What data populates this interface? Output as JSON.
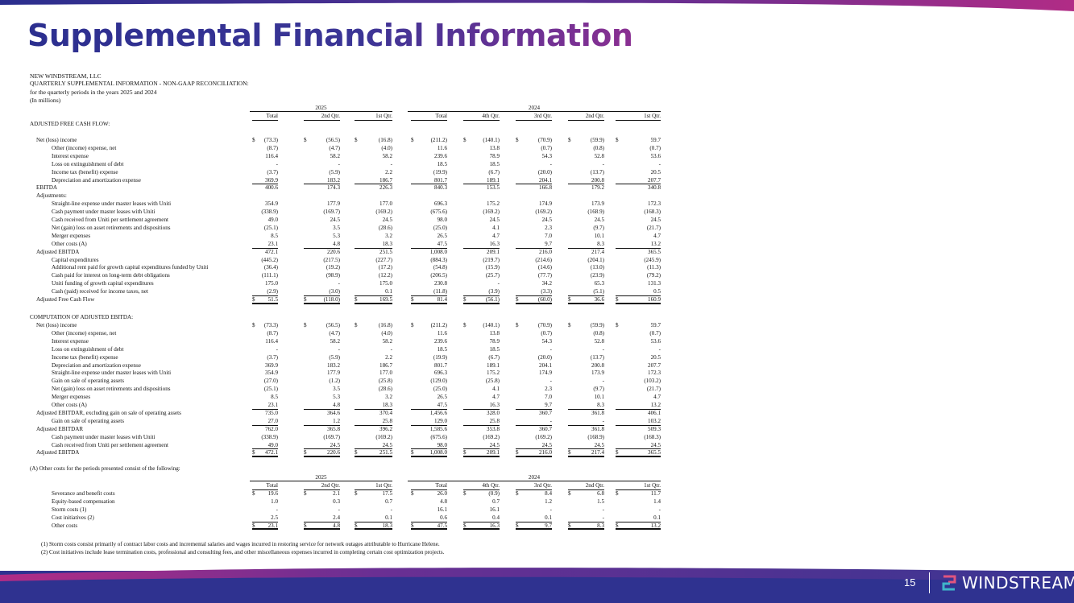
{
  "slide": {
    "title": "Supplemental Financial Information",
    "page_number": "15",
    "brand": "WINDSTREAM"
  },
  "doc": {
    "company": "NEW WINDSTREAM, LLC",
    "subtitle": "QUARTERLY SUPPLEMENTAL INFORMATION - NON-GAAP RECONCILIATION:",
    "periods": "for the quarterly periods in the years 2025 and 2024",
    "units": "(In millions)"
  },
  "columns": {
    "year_2025": "2025",
    "year_2024": "2024",
    "headers": [
      "Total",
      "2nd Qtr.",
      "1st Qtr.",
      "Total",
      "4th Qtr.",
      "3rd Qtr.",
      "2nd Qtr.",
      "1st Qtr."
    ]
  },
  "section1": {
    "title": "ADJUSTED FREE CASH FLOW:",
    "rows": [
      {
        "label": "Net (loss) income",
        "indent": 1,
        "dollar": true,
        "values": [
          "(73.3)",
          "(56.5)",
          "(16.8)",
          "(211.2)",
          "(140.1)",
          "(70.9)",
          "(59.9)",
          "59.7"
        ]
      },
      {
        "label": "Other (income) expense, net",
        "indent": 2,
        "values": [
          "(8.7)",
          "(4.7)",
          "(4.0)",
          "11.6",
          "13.8",
          "(0.7)",
          "(0.8)",
          "(0.7)"
        ]
      },
      {
        "label": "Interest expense",
        "indent": 2,
        "values": [
          "116.4",
          "58.2",
          "58.2",
          "239.6",
          "78.9",
          "54.3",
          "52.8",
          "53.6"
        ]
      },
      {
        "label": "Loss on extinguishment of debt",
        "indent": 2,
        "values": [
          "-",
          "-",
          "-",
          "18.5",
          "18.5",
          "-",
          "-",
          "-"
        ]
      },
      {
        "label": "Income tax (benefit) expense",
        "indent": 2,
        "values": [
          "(3.7)",
          "(5.9)",
          "2.2",
          "(19.9)",
          "(6.7)",
          "(20.0)",
          "(13.7)",
          "20.5"
        ]
      },
      {
        "label": "Depreciation and amortization expense",
        "indent": 2,
        "underline": true,
        "values": [
          "369.9",
          "183.2",
          "186.7",
          "801.7",
          "189.1",
          "204.1",
          "200.8",
          "207.7"
        ]
      },
      {
        "label": "EBITDA",
        "indent": 1,
        "values": [
          "400.6",
          "174.3",
          "226.3",
          "840.3",
          "153.5",
          "166.8",
          "179.2",
          "340.8"
        ]
      },
      {
        "label": "Adjustments:",
        "indent": 1,
        "values": []
      },
      {
        "label": "Straight-line expense under master leases with Uniti",
        "indent": 2,
        "values": [
          "354.9",
          "177.9",
          "177.0",
          "696.3",
          "175.2",
          "174.9",
          "173.9",
          "172.3"
        ]
      },
      {
        "label": "Cash payment under master leases with Uniti",
        "indent": 2,
        "values": [
          "(338.9)",
          "(169.7)",
          "(169.2)",
          "(675.6)",
          "(169.2)",
          "(169.2)",
          "(168.9)",
          "(168.3)"
        ]
      },
      {
        "label": "Cash received from Uniti per settlement agreement",
        "indent": 2,
        "values": [
          "49.0",
          "24.5",
          "24.5",
          "98.0",
          "24.5",
          "24.5",
          "24.5",
          "24.5"
        ]
      },
      {
        "label": "Net (gain) loss on asset retirements and dispositions",
        "indent": 2,
        "values": [
          "(25.1)",
          "3.5",
          "(28.6)",
          "(25.0)",
          "4.1",
          "2.3",
          "(9.7)",
          "(21.7)"
        ]
      },
      {
        "label": "Merger expenses",
        "indent": 2,
        "values": [
          "8.5",
          "5.3",
          "3.2",
          "26.5",
          "4.7",
          "7.0",
          "10.1",
          "4.7"
        ]
      },
      {
        "label": "Other costs (A)",
        "indent": 2,
        "underline": true,
        "values": [
          "23.1",
          "4.8",
          "18.3",
          "47.5",
          "16.3",
          "9.7",
          "8.3",
          "13.2"
        ]
      },
      {
        "label": "Adjusted EBITDA",
        "indent": 1,
        "values": [
          "472.1",
          "220.6",
          "251.5",
          "1,008.0",
          "209.1",
          "216.0",
          "217.4",
          "365.5"
        ]
      },
      {
        "label": "Capital expenditures",
        "indent": 2,
        "values": [
          "(445.2)",
          "(217.5)",
          "(227.7)",
          "(884.3)",
          "(219.7)",
          "(214.6)",
          "(204.1)",
          "(245.9)"
        ]
      },
      {
        "label": "Additional rent paid for growth capital expenditures funded by Uniti",
        "indent": 2,
        "values": [
          "(36.4)",
          "(19.2)",
          "(17.2)",
          "(54.8)",
          "(15.9)",
          "(14.6)",
          "(13.0)",
          "(11.3)"
        ]
      },
      {
        "label": "Cash paid for interest on long-term debt obligations",
        "indent": 2,
        "values": [
          "(111.1)",
          "(98.9)",
          "(12.2)",
          "(206.5)",
          "(25.7)",
          "(77.7)",
          "(23.9)",
          "(79.2)"
        ]
      },
      {
        "label": "Uniti funding of growth capital expenditures",
        "indent": 2,
        "values": [
          "175.0",
          "-",
          "175.0",
          "230.8",
          "-",
          "34.2",
          "65.3",
          "131.3"
        ]
      },
      {
        "label": "Cash (paid) received for income taxes, net",
        "indent": 2,
        "underline": true,
        "values": [
          "(2.9)",
          "(3.0)",
          "0.1",
          "(11.8)",
          "(3.9)",
          "(3.3)",
          "(5.1)",
          "0.5"
        ]
      },
      {
        "label": "Adjusted Free Cash Flow",
        "indent": 1,
        "dollar": true,
        "double": true,
        "values": [
          "51.5",
          "(118.0)",
          "169.5",
          "81.4",
          "(56.1)",
          "(60.0)",
          "36.6",
          "160.9"
        ]
      }
    ]
  },
  "section2": {
    "title": "COMPUTATION OF ADJUSTED EBITDA:",
    "rows": [
      {
        "label": "Net (loss) income",
        "indent": 1,
        "dollar": true,
        "values": [
          "(73.3)",
          "(56.5)",
          "(16.8)",
          "(211.2)",
          "(140.1)",
          "(70.9)",
          "(59.9)",
          "59.7"
        ]
      },
      {
        "label": "Other (income) expense, net",
        "indent": 2,
        "values": [
          "(8.7)",
          "(4.7)",
          "(4.0)",
          "11.6",
          "13.8",
          "(0.7)",
          "(0.8)",
          "(0.7)"
        ]
      },
      {
        "label": "Interest expense",
        "indent": 2,
        "values": [
          "116.4",
          "58.2",
          "58.2",
          "239.6",
          "78.9",
          "54.3",
          "52.8",
          "53.6"
        ]
      },
      {
        "label": "Loss on extinguishment of debt",
        "indent": 2,
        "values": [
          "-",
          "-",
          "-",
          "18.5",
          "18.5",
          "-",
          "-",
          "-"
        ]
      },
      {
        "label": "Income tax (benefit) expense",
        "indent": 2,
        "values": [
          "(3.7)",
          "(5.9)",
          "2.2",
          "(19.9)",
          "(6.7)",
          "(20.0)",
          "(13.7)",
          "20.5"
        ]
      },
      {
        "label": "Depreciation and amortization expense",
        "indent": 2,
        "values": [
          "369.9",
          "183.2",
          "186.7",
          "801.7",
          "189.1",
          "204.1",
          "200.8",
          "207.7"
        ]
      },
      {
        "label": "Straight-line expense under master leases with Uniti",
        "indent": 2,
        "values": [
          "354.9",
          "177.9",
          "177.0",
          "696.3",
          "175.2",
          "174.9",
          "173.9",
          "172.3"
        ]
      },
      {
        "label": "Gain on sale of operating assets",
        "indent": 2,
        "values": [
          "(27.0)",
          "(1.2)",
          "(25.8)",
          "(129.0)",
          "(25.8)",
          "-",
          "-",
          "(103.2)"
        ]
      },
      {
        "label": "Net (gain) loss on asset retirements and dispositions",
        "indent": 2,
        "values": [
          "(25.1)",
          "3.5",
          "(28.6)",
          "(25.0)",
          "4.1",
          "2.3",
          "(9.7)",
          "(21.7)"
        ]
      },
      {
        "label": "Merger expenses",
        "indent": 2,
        "values": [
          "8.5",
          "5.3",
          "3.2",
          "26.5",
          "4.7",
          "7.0",
          "10.1",
          "4.7"
        ]
      },
      {
        "label": "Other costs (A)",
        "indent": 2,
        "underline": true,
        "values": [
          "23.1",
          "4.8",
          "18.3",
          "47.5",
          "16.3",
          "9.7",
          "8.3",
          "13.2"
        ]
      },
      {
        "label": "Adjusted EBITDAR, excluding gain on sale of operating assets",
        "indent": 1,
        "values": [
          "735.0",
          "364.6",
          "370.4",
          "1,456.6",
          "328.0",
          "360.7",
          "361.8",
          "406.1"
        ]
      },
      {
        "label": "Gain on sale of operating assets",
        "indent": 2,
        "underline": true,
        "values": [
          "27.0",
          "1.2",
          "25.8",
          "129.0",
          "25.8",
          "-",
          "-",
          "103.2"
        ]
      },
      {
        "label": "Adjusted EBITDAR",
        "indent": 1,
        "values": [
          "762.0",
          "365.8",
          "396.2",
          "1,585.6",
          "353.8",
          "360.7",
          "361.8",
          "509.3"
        ]
      },
      {
        "label": "Cash payment under master leases with Uniti",
        "indent": 2,
        "values": [
          "(338.9)",
          "(169.7)",
          "(169.2)",
          "(675.6)",
          "(169.2)",
          "(169.2)",
          "(168.9)",
          "(168.3)"
        ]
      },
      {
        "label": "Cash received from Uniti per settlement agreement",
        "indent": 2,
        "underline": true,
        "values": [
          "49.0",
          "24.5",
          "24.5",
          "98.0",
          "24.5",
          "24.5",
          "24.5",
          "24.5"
        ]
      },
      {
        "label": "Adjusted EBITDA",
        "indent": 1,
        "dollar": true,
        "double": true,
        "values": [
          "472.1",
          "220.6",
          "251.5",
          "1,008.0",
          "209.1",
          "216.0",
          "217.4",
          "365.5"
        ]
      }
    ]
  },
  "section3": {
    "title": "(A)    Other costs for the periods presented consist of the following:",
    "rows": [
      {
        "label": "Severance and benefit costs",
        "indent": 2,
        "dollar": true,
        "values": [
          "19.6",
          "2.1",
          "17.5",
          "26.0",
          "(0.9)",
          "8.4",
          "6.8",
          "11.7"
        ]
      },
      {
        "label": "Equity-based compensation",
        "indent": 2,
        "values": [
          "1.0",
          "0.3",
          "0.7",
          "4.8",
          "0.7",
          "1.2",
          "1.5",
          "1.4"
        ]
      },
      {
        "label": "Storm costs (1)",
        "indent": 2,
        "values": [
          "-",
          "-",
          "-",
          "16.1",
          "16.1",
          "-",
          "-",
          "-"
        ]
      },
      {
        "label": "Cost initiatives (2)",
        "indent": 2,
        "underline": true,
        "values": [
          "2.5",
          "2.4",
          "0.1",
          "0.6",
          "0.4",
          "0.1",
          "-",
          "0.1"
        ]
      },
      {
        "label": "Other costs",
        "indent": 2,
        "dollar": true,
        "double": true,
        "values": [
          "23.1",
          "4.8",
          "18.3",
          "47.5",
          "16.3",
          "9.7",
          "8.3",
          "13.2"
        ]
      }
    ]
  },
  "footnotes": [
    "(1)  Storm costs consist primarily of contract labor costs and incremental salaries and wages incurred in restoring service for network outages attributable to Hurricane Helene.",
    "(2)  Cost initiatives include lease termination costs, professional and consulting fees, and other miscellaneous expenses incurred in completing certain cost optimization projects."
  ]
}
